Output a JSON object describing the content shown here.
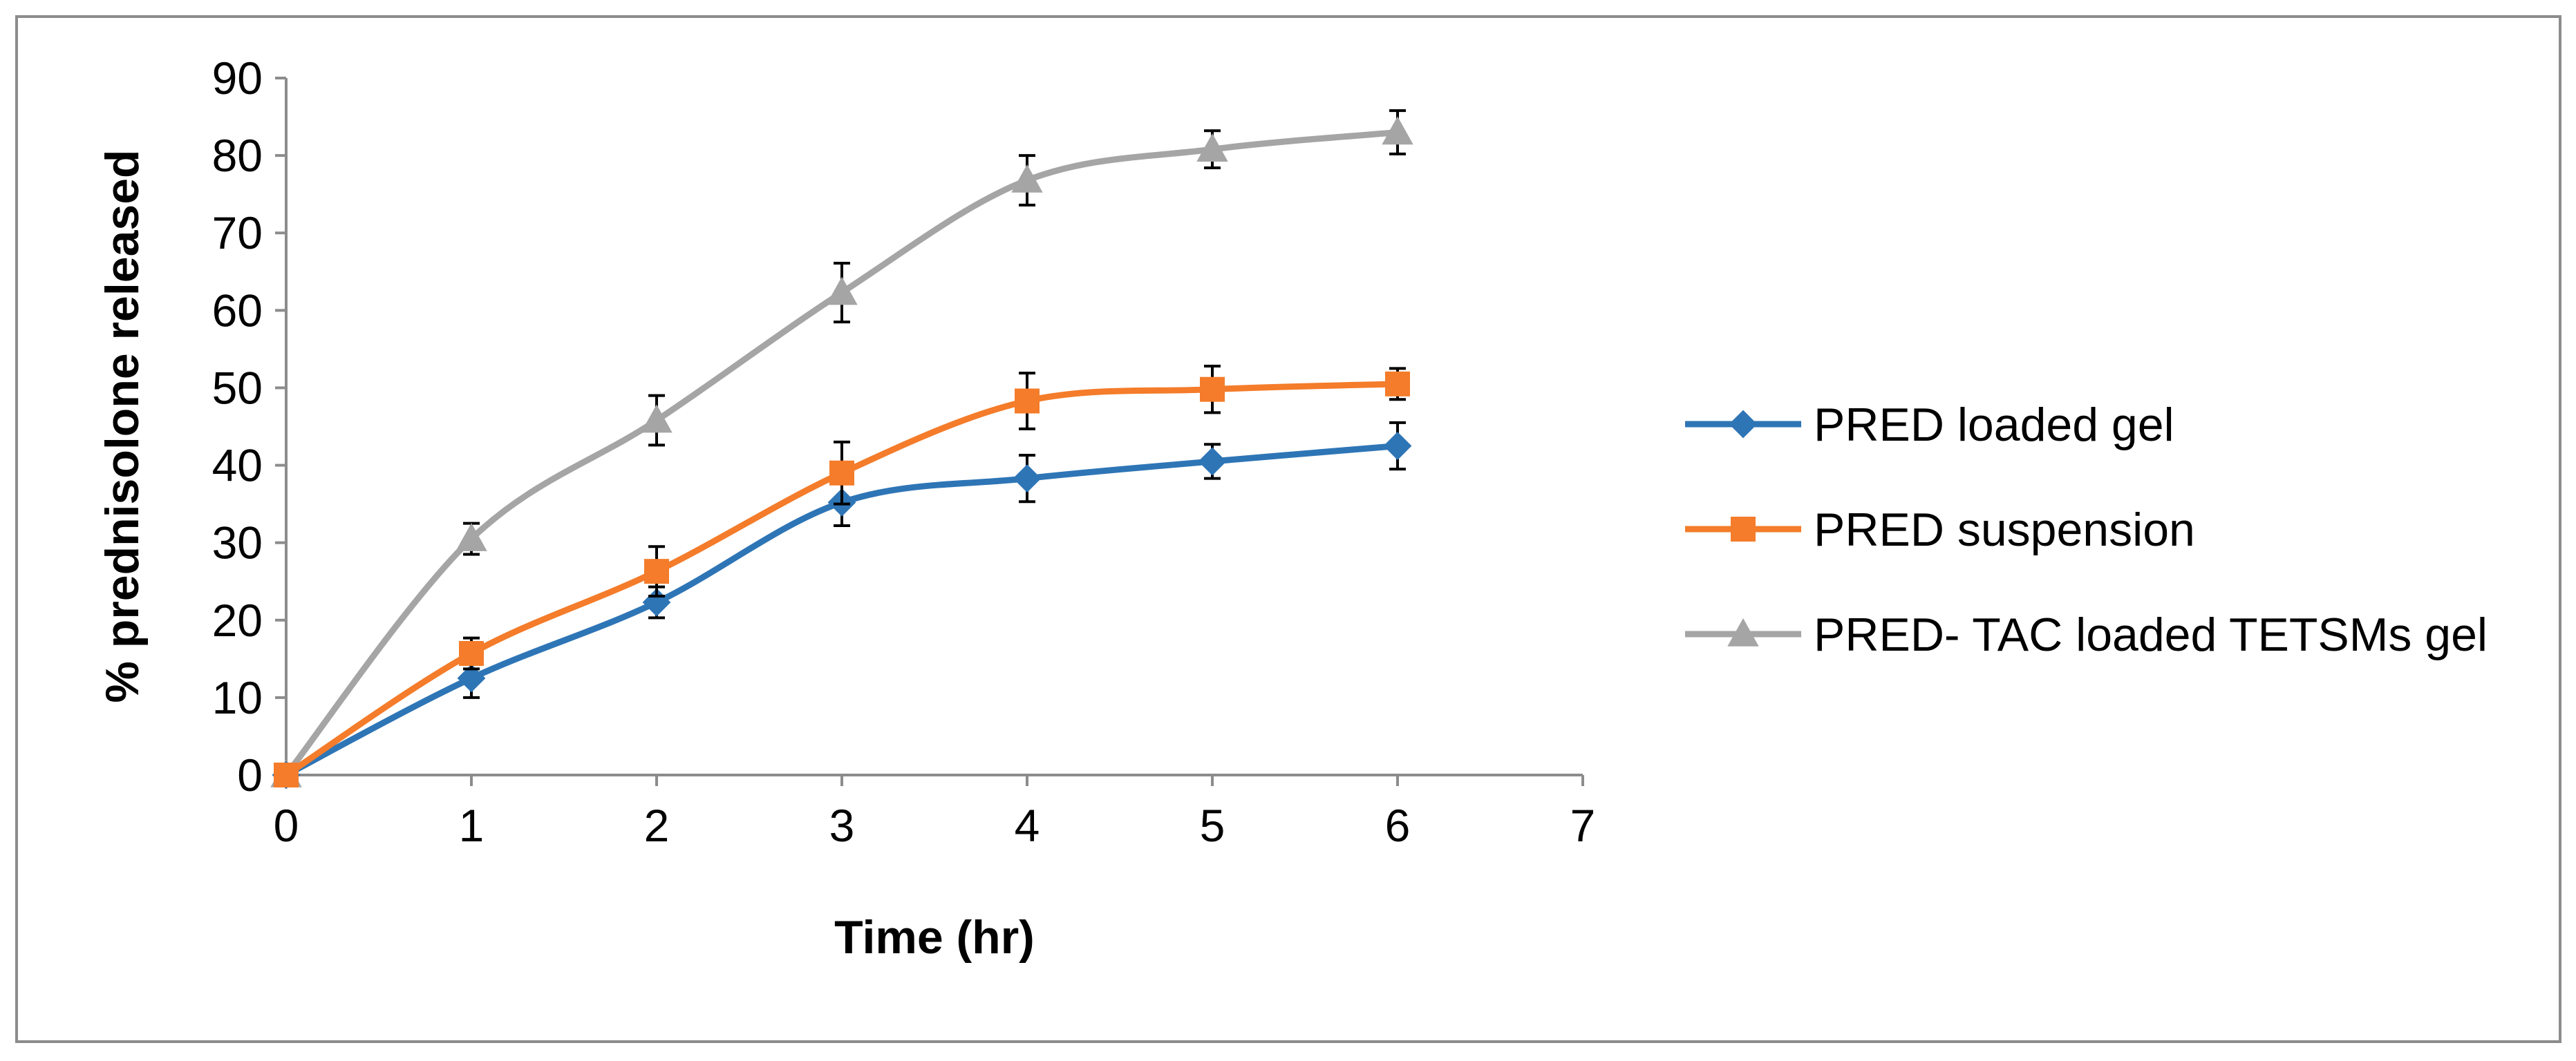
{
  "chart_data": {
    "type": "line",
    "title": "",
    "xlabel": "Time (hr)",
    "ylabel": "%  prednisolone released",
    "xlim": [
      0,
      7
    ],
    "ylim": [
      0,
      90
    ],
    "xticks": [
      0,
      1,
      2,
      3,
      4,
      5,
      6,
      7
    ],
    "yticks": [
      0,
      10,
      20,
      30,
      40,
      50,
      60,
      70,
      80,
      90
    ],
    "grid": false,
    "legend_position": "right",
    "x": [
      0,
      1,
      2,
      3,
      4,
      5,
      6
    ],
    "series": [
      {
        "name": "PRED loaded gel",
        "color": "#2e75b6",
        "marker": "diamond",
        "values": [
          0,
          12.5,
          22.3,
          35.2,
          38.3,
          40.5,
          42.5
        ],
        "errors": [
          0,
          2.5,
          2.0,
          3.0,
          3.0,
          2.2,
          3.0
        ]
      },
      {
        "name": "PRED suspension",
        "color": "#f47c2a",
        "marker": "square",
        "values": [
          0,
          15.7,
          26.3,
          39.0,
          48.3,
          49.8,
          50.5
        ],
        "errors": [
          0,
          2.0,
          3.2,
          4.0,
          3.6,
          3.0,
          2.0
        ]
      },
      {
        "name": "PRED- TAC loaded TETSMs gel",
        "color": "#a5a5a5",
        "marker": "triangle",
        "values": [
          0,
          30.5,
          45.8,
          62.3,
          76.8,
          80.8,
          83.0
        ],
        "errors": [
          0,
          2.0,
          3.2,
          3.8,
          3.2,
          2.4,
          2.8
        ]
      }
    ]
  }
}
